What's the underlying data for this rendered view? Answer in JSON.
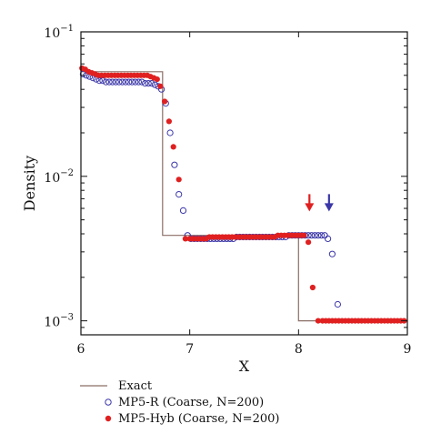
{
  "chart_data": {
    "type": "scatter",
    "title": "",
    "xlabel": "X",
    "ylabel": "Density",
    "xlim": [
      6,
      9
    ],
    "ylim": [
      0.0008,
      0.1
    ],
    "y_scale": "log",
    "x_ticks": [
      6,
      7,
      8,
      9
    ],
    "x_tick_labels": [
      "6",
      "7",
      "8",
      "9"
    ],
    "y_ticks": [
      0.1,
      0.01,
      0.001
    ],
    "y_tick_labels": [
      {
        "base": "10",
        "exp": "−1"
      },
      {
        "base": "10",
        "exp": "−2"
      },
      {
        "base": "10",
        "exp": "−3"
      }
    ],
    "grid": false,
    "legend_position": "bottom-left outside",
    "colors": {
      "exact": "#8a6f66",
      "mp5r": "#3b37a8",
      "mp5hyb": "#e02020"
    },
    "annotations": [
      {
        "type": "arrow-down",
        "x": 8.1,
        "y": 0.0058,
        "color": "#e02020"
      },
      {
        "type": "arrow-down",
        "x": 8.28,
        "y": 0.0058,
        "color": "#3b37a8"
      }
    ],
    "series": [
      {
        "name": "Exact",
        "kind": "step-line",
        "x": [
          6.0,
          6.75,
          6.75,
          7.0,
          8.0,
          8.0,
          9.0
        ],
        "y": [
          0.053,
          0.053,
          0.0039,
          0.0039,
          0.0039,
          0.001,
          0.001
        ]
      },
      {
        "name": "MP5-R (Coarse, N=200)",
        "kind": "open-circle",
        "x": [
          6.02,
          6.05,
          6.08,
          6.11,
          6.14,
          6.17,
          6.2,
          6.23,
          6.26,
          6.29,
          6.32,
          6.35,
          6.38,
          6.41,
          6.44,
          6.47,
          6.5,
          6.53,
          6.56,
          6.59,
          6.62,
          6.65,
          6.68,
          6.71,
          6.74,
          6.78,
          6.82,
          6.86,
          6.9,
          6.94,
          6.98,
          7.01,
          7.04,
          7.07,
          7.1,
          7.13,
          7.16,
          7.19,
          7.22,
          7.25,
          7.28,
          7.31,
          7.34,
          7.37,
          7.4,
          7.43,
          7.46,
          7.49,
          7.52,
          7.55,
          7.58,
          7.61,
          7.64,
          7.67,
          7.7,
          7.73,
          7.76,
          7.79,
          7.82,
          7.85,
          7.88,
          7.91,
          7.94,
          7.97,
          8.0,
          8.03,
          8.06,
          8.09,
          8.12,
          8.15,
          8.18,
          8.21,
          8.24,
          8.27,
          8.31,
          8.36
        ],
        "y": [
          0.051,
          0.05,
          0.049,
          0.048,
          0.047,
          0.046,
          0.046,
          0.045,
          0.045,
          0.045,
          0.045,
          0.045,
          0.045,
          0.045,
          0.045,
          0.045,
          0.045,
          0.045,
          0.045,
          0.044,
          0.044,
          0.044,
          0.043,
          0.042,
          0.04,
          0.032,
          0.02,
          0.012,
          0.0075,
          0.0058,
          0.0039,
          0.0037,
          0.0037,
          0.0037,
          0.0037,
          0.0037,
          0.0037,
          0.0037,
          0.0037,
          0.0037,
          0.0037,
          0.0037,
          0.0037,
          0.0037,
          0.0037,
          0.0038,
          0.0038,
          0.0038,
          0.0038,
          0.0038,
          0.0038,
          0.0038,
          0.0038,
          0.0038,
          0.0038,
          0.0038,
          0.0038,
          0.0038,
          0.0038,
          0.0038,
          0.0038,
          0.0039,
          0.0039,
          0.0039,
          0.0039,
          0.0039,
          0.0039,
          0.0039,
          0.0039,
          0.0039,
          0.0039,
          0.0039,
          0.0039,
          0.0037,
          0.0029,
          0.0013
        ]
      },
      {
        "name": "MP5-Hyb (Coarse, N=200)",
        "kind": "filled-circle",
        "x": [
          6.01,
          6.04,
          6.07,
          6.1,
          6.13,
          6.16,
          6.19,
          6.22,
          6.25,
          6.28,
          6.31,
          6.34,
          6.37,
          6.4,
          6.43,
          6.46,
          6.49,
          6.52,
          6.55,
          6.58,
          6.61,
          6.64,
          6.67,
          6.7,
          6.73,
          6.77,
          6.81,
          6.85,
          6.9,
          6.96,
          7.0,
          7.03,
          7.06,
          7.09,
          7.12,
          7.15,
          7.18,
          7.21,
          7.24,
          7.27,
          7.3,
          7.33,
          7.36,
          7.39,
          7.42,
          7.45,
          7.48,
          7.51,
          7.54,
          7.57,
          7.6,
          7.63,
          7.66,
          7.69,
          7.72,
          7.75,
          7.78,
          7.81,
          7.84,
          7.87,
          7.9,
          7.93,
          7.96,
          7.99,
          8.02,
          8.05,
          8.09,
          8.13,
          8.18,
          8.22,
          8.25,
          8.28,
          8.31,
          8.34,
          8.37,
          8.4,
          8.43,
          8.46,
          8.49,
          8.52,
          8.55,
          8.58,
          8.61,
          8.64,
          8.67,
          8.7,
          8.73,
          8.76,
          8.79,
          8.82,
          8.85,
          8.88,
          8.91,
          8.94,
          8.97
        ],
        "y": [
          0.056,
          0.055,
          0.053,
          0.052,
          0.051,
          0.05,
          0.05,
          0.05,
          0.05,
          0.05,
          0.05,
          0.05,
          0.05,
          0.05,
          0.05,
          0.05,
          0.05,
          0.05,
          0.05,
          0.05,
          0.05,
          0.049,
          0.048,
          0.047,
          0.042,
          0.033,
          0.024,
          0.016,
          0.0095,
          0.0037,
          0.0037,
          0.0037,
          0.0037,
          0.0037,
          0.0037,
          0.0037,
          0.0038,
          0.0038,
          0.0038,
          0.0038,
          0.0038,
          0.0038,
          0.0038,
          0.0038,
          0.0038,
          0.0038,
          0.0038,
          0.0038,
          0.0038,
          0.0038,
          0.0038,
          0.0038,
          0.0038,
          0.0038,
          0.0038,
          0.0038,
          0.0038,
          0.0039,
          0.0039,
          0.0039,
          0.0039,
          0.0039,
          0.0039,
          0.0039,
          0.0039,
          0.0039,
          0.0035,
          0.0017,
          0.001,
          0.001,
          0.001,
          0.001,
          0.001,
          0.001,
          0.001,
          0.001,
          0.001,
          0.001,
          0.001,
          0.001,
          0.001,
          0.001,
          0.001,
          0.001,
          0.001,
          0.001,
          0.001,
          0.001,
          0.001,
          0.001,
          0.001,
          0.001,
          0.001,
          0.001,
          0.001
        ]
      }
    ]
  }
}
